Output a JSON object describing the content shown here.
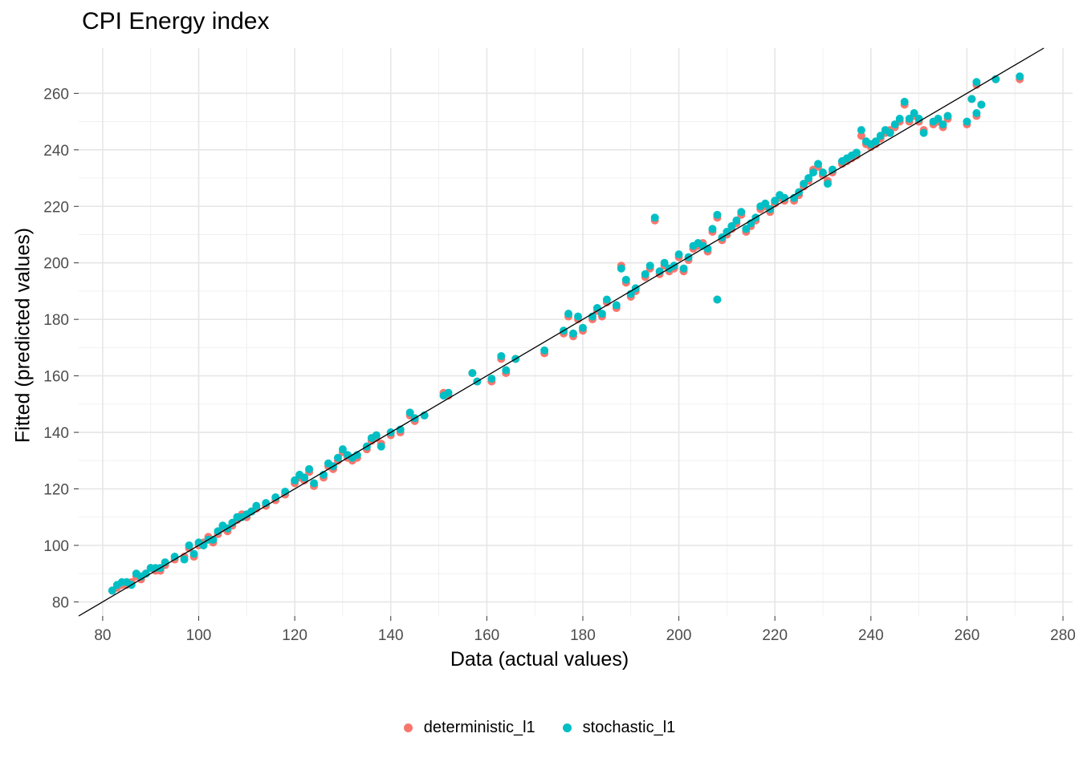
{
  "chart_data": {
    "type": "scatter",
    "title": "CPI Energy index",
    "xlabel": "Data (actual values)",
    "ylabel": "Fitted (predicted values)",
    "xlim": [
      75,
      282
    ],
    "ylim": [
      75,
      276
    ],
    "xticks": [
      80,
      100,
      120,
      140,
      160,
      180,
      200,
      220,
      240,
      260,
      280
    ],
    "yticks": [
      80,
      100,
      120,
      140,
      160,
      180,
      200,
      220,
      240,
      260
    ],
    "grid": true,
    "legend_position": "bottom",
    "reference_line": {
      "intercept": 0,
      "slope": 1,
      "color": "#000000"
    },
    "series": [
      {
        "name": "deterministic_l1",
        "color": "#F8766D",
        "points": [
          [
            82,
            84
          ],
          [
            83,
            85
          ],
          [
            84,
            86
          ],
          [
            85,
            86
          ],
          [
            86,
            87
          ],
          [
            87,
            89
          ],
          [
            88,
            88
          ],
          [
            89,
            90
          ],
          [
            90,
            92
          ],
          [
            91,
            91
          ],
          [
            92,
            91
          ],
          [
            93,
            93
          ],
          [
            95,
            95
          ],
          [
            97,
            96
          ],
          [
            98,
            99
          ],
          [
            99,
            96
          ],
          [
            100,
            100
          ],
          [
            101,
            101
          ],
          [
            102,
            103
          ],
          [
            103,
            101
          ],
          [
            104,
            104
          ],
          [
            105,
            106
          ],
          [
            106,
            105
          ],
          [
            107,
            107
          ],
          [
            108,
            109
          ],
          [
            109,
            111
          ],
          [
            110,
            110
          ],
          [
            111,
            112
          ],
          [
            112,
            113
          ],
          [
            114,
            114
          ],
          [
            116,
            116
          ],
          [
            118,
            118
          ],
          [
            120,
            122
          ],
          [
            121,
            124
          ],
          [
            122,
            123
          ],
          [
            123,
            126
          ],
          [
            124,
            121
          ],
          [
            126,
            124
          ],
          [
            127,
            128
          ],
          [
            128,
            127
          ],
          [
            129,
            130
          ],
          [
            130,
            133
          ],
          [
            131,
            131
          ],
          [
            132,
            130
          ],
          [
            133,
            131
          ],
          [
            135,
            134
          ],
          [
            136,
            137
          ],
          [
            137,
            138
          ],
          [
            138,
            136
          ],
          [
            140,
            139
          ],
          [
            142,
            140
          ],
          [
            144,
            146
          ],
          [
            145,
            144
          ],
          [
            147,
            146
          ],
          [
            151,
            154
          ],
          [
            152,
            153
          ],
          [
            157,
            161
          ],
          [
            158,
            158
          ],
          [
            161,
            158
          ],
          [
            163,
            166
          ],
          [
            164,
            161
          ],
          [
            166,
            166
          ],
          [
            172,
            168
          ],
          [
            176,
            175
          ],
          [
            177,
            181
          ],
          [
            178,
            174
          ],
          [
            179,
            180
          ],
          [
            180,
            176
          ],
          [
            182,
            180
          ],
          [
            183,
            183
          ],
          [
            184,
            181
          ],
          [
            185,
            186
          ],
          [
            187,
            184
          ],
          [
            188,
            199
          ],
          [
            189,
            193
          ],
          [
            190,
            188
          ],
          [
            191,
            190
          ],
          [
            193,
            195
          ],
          [
            194,
            198
          ],
          [
            195,
            215
          ],
          [
            196,
            196
          ],
          [
            197,
            199
          ],
          [
            198,
            197
          ],
          [
            199,
            198
          ],
          [
            200,
            202
          ],
          [
            201,
            197
          ],
          [
            202,
            201
          ],
          [
            203,
            205
          ],
          [
            204,
            206
          ],
          [
            205,
            207
          ],
          [
            206,
            204
          ],
          [
            207,
            211
          ],
          [
            208,
            216
          ],
          [
            208,
            187
          ],
          [
            209,
            208
          ],
          [
            210,
            210
          ],
          [
            211,
            212
          ],
          [
            212,
            214
          ],
          [
            213,
            217
          ],
          [
            214,
            211
          ],
          [
            215,
            213
          ],
          [
            216,
            215
          ],
          [
            217,
            219
          ],
          [
            218,
            220
          ],
          [
            219,
            218
          ],
          [
            220,
            221
          ],
          [
            221,
            223
          ],
          [
            222,
            222
          ],
          [
            224,
            222
          ],
          [
            225,
            224
          ],
          [
            226,
            227
          ],
          [
            227,
            229
          ],
          [
            228,
            233
          ],
          [
            229,
            234
          ],
          [
            230,
            231
          ],
          [
            231,
            229
          ],
          [
            232,
            232
          ],
          [
            234,
            235
          ],
          [
            235,
            236
          ],
          [
            236,
            237
          ],
          [
            237,
            238
          ],
          [
            238,
            245
          ],
          [
            239,
            242
          ],
          [
            240,
            241
          ],
          [
            241,
            242
          ],
          [
            242,
            244
          ],
          [
            243,
            246
          ],
          [
            244,
            247
          ],
          [
            245,
            248
          ],
          [
            246,
            250
          ],
          [
            247,
            256
          ],
          [
            248,
            250
          ],
          [
            249,
            252
          ],
          [
            250,
            250
          ],
          [
            251,
            247
          ],
          [
            253,
            249
          ],
          [
            254,
            250
          ],
          [
            255,
            248
          ],
          [
            256,
            251
          ],
          [
            260,
            249
          ],
          [
            261,
            258
          ],
          [
            262,
            252
          ],
          [
            262,
            263
          ],
          [
            263,
            256
          ],
          [
            266,
            265
          ],
          [
            271,
            265
          ]
        ]
      },
      {
        "name": "stochastic_l1",
        "color": "#00BFC4",
        "points": [
          [
            82,
            84
          ],
          [
            83,
            86
          ],
          [
            84,
            87
          ],
          [
            85,
            87
          ],
          [
            86,
            86
          ],
          [
            87,
            90
          ],
          [
            88,
            89
          ],
          [
            89,
            90
          ],
          [
            90,
            92
          ],
          [
            91,
            92
          ],
          [
            92,
            92
          ],
          [
            93,
            94
          ],
          [
            95,
            96
          ],
          [
            97,
            95
          ],
          [
            98,
            100
          ],
          [
            99,
            97
          ],
          [
            100,
            101
          ],
          [
            101,
            100
          ],
          [
            102,
            102
          ],
          [
            103,
            102
          ],
          [
            104,
            105
          ],
          [
            105,
            107
          ],
          [
            106,
            106
          ],
          [
            107,
            108
          ],
          [
            108,
            110
          ],
          [
            109,
            110
          ],
          [
            110,
            111
          ],
          [
            111,
            112
          ],
          [
            112,
            114
          ],
          [
            114,
            115
          ],
          [
            116,
            117
          ],
          [
            118,
            119
          ],
          [
            120,
            123
          ],
          [
            121,
            125
          ],
          [
            122,
            124
          ],
          [
            123,
            127
          ],
          [
            124,
            122
          ],
          [
            126,
            125
          ],
          [
            127,
            129
          ],
          [
            128,
            128
          ],
          [
            129,
            131
          ],
          [
            130,
            134
          ],
          [
            131,
            132
          ],
          [
            132,
            131
          ],
          [
            133,
            132
          ],
          [
            135,
            135
          ],
          [
            136,
            138
          ],
          [
            137,
            139
          ],
          [
            138,
            135
          ],
          [
            140,
            140
          ],
          [
            142,
            141
          ],
          [
            144,
            147
          ],
          [
            145,
            145
          ],
          [
            147,
            146
          ],
          [
            151,
            153
          ],
          [
            152,
            154
          ],
          [
            157,
            161
          ],
          [
            158,
            158
          ],
          [
            161,
            159
          ],
          [
            163,
            167
          ],
          [
            164,
            162
          ],
          [
            166,
            166
          ],
          [
            172,
            169
          ],
          [
            176,
            176
          ],
          [
            177,
            182
          ],
          [
            178,
            175
          ],
          [
            179,
            181
          ],
          [
            180,
            177
          ],
          [
            182,
            181
          ],
          [
            183,
            184
          ],
          [
            184,
            182
          ],
          [
            185,
            187
          ],
          [
            187,
            185
          ],
          [
            188,
            198
          ],
          [
            189,
            194
          ],
          [
            190,
            189
          ],
          [
            191,
            191
          ],
          [
            193,
            196
          ],
          [
            194,
            199
          ],
          [
            195,
            216
          ],
          [
            196,
            197
          ],
          [
            197,
            200
          ],
          [
            198,
            198
          ],
          [
            199,
            199
          ],
          [
            200,
            203
          ],
          [
            201,
            198
          ],
          [
            202,
            202
          ],
          [
            203,
            206
          ],
          [
            204,
            207
          ],
          [
            205,
            206
          ],
          [
            206,
            205
          ],
          [
            207,
            212
          ],
          [
            208,
            217
          ],
          [
            208,
            187
          ],
          [
            209,
            209
          ],
          [
            210,
            211
          ],
          [
            211,
            213
          ],
          [
            212,
            215
          ],
          [
            213,
            218
          ],
          [
            214,
            212
          ],
          [
            215,
            214
          ],
          [
            216,
            216
          ],
          [
            217,
            220
          ],
          [
            218,
            221
          ],
          [
            219,
            219
          ],
          [
            220,
            222
          ],
          [
            221,
            224
          ],
          [
            222,
            223
          ],
          [
            224,
            223
          ],
          [
            225,
            225
          ],
          [
            226,
            228
          ],
          [
            227,
            230
          ],
          [
            228,
            232
          ],
          [
            229,
            235
          ],
          [
            230,
            232
          ],
          [
            231,
            228
          ],
          [
            232,
            233
          ],
          [
            234,
            236
          ],
          [
            235,
            237
          ],
          [
            236,
            238
          ],
          [
            237,
            239
          ],
          [
            238,
            247
          ],
          [
            239,
            243
          ],
          [
            240,
            242
          ],
          [
            241,
            243
          ],
          [
            242,
            245
          ],
          [
            243,
            247
          ],
          [
            244,
            246
          ],
          [
            245,
            249
          ],
          [
            246,
            251
          ],
          [
            247,
            257
          ],
          [
            248,
            251
          ],
          [
            249,
            253
          ],
          [
            250,
            251
          ],
          [
            251,
            246
          ],
          [
            253,
            250
          ],
          [
            254,
            251
          ],
          [
            255,
            249
          ],
          [
            256,
            252
          ],
          [
            260,
            250
          ],
          [
            261,
            258
          ],
          [
            262,
            253
          ],
          [
            262,
            264
          ],
          [
            263,
            256
          ],
          [
            266,
            265
          ],
          [
            271,
            266
          ]
        ]
      }
    ]
  }
}
